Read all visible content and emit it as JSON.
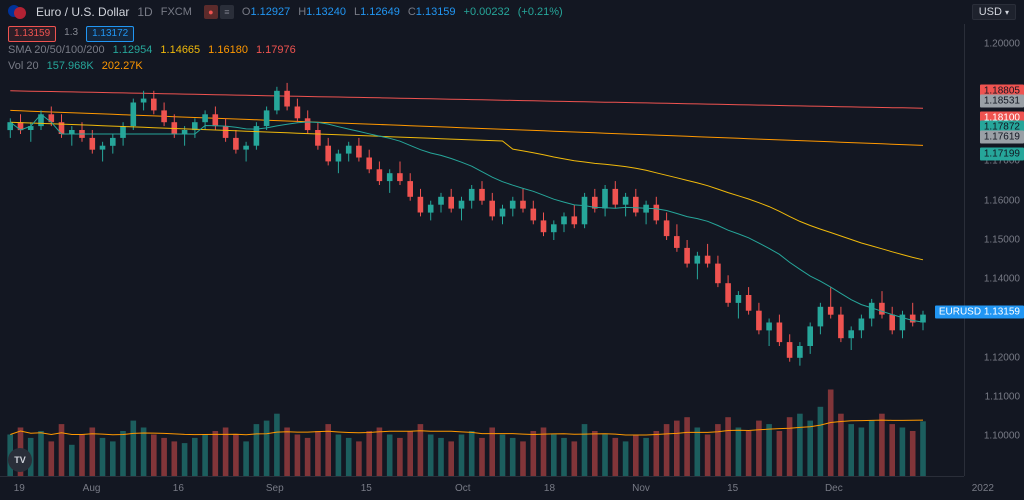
{
  "header": {
    "symbol_name": "Euro / U.S. Dollar",
    "timeframe": "1D",
    "exchange": "FXCM",
    "currency": "USD",
    "ohlc": {
      "o_label": "O",
      "o": "1.12927",
      "h_label": "H",
      "h": "1.13240",
      "l_label": "L",
      "l": "1.12649",
      "c_label": "C",
      "c": "1.13159",
      "change": "+0.00232",
      "change_pct": "(+0.21%)"
    }
  },
  "pills": {
    "bid": "1.13159",
    "mid": "1.3",
    "ask": "1.13172"
  },
  "sma": {
    "label": "SMA 20/50/100/200",
    "v20": "1.12954",
    "v50": "1.14665",
    "v100": "1.16180",
    "v200": "1.17976"
  },
  "volume": {
    "label": "Vol 20",
    "v1": "157.968K",
    "v2": "202.27K"
  },
  "price_labels": [
    {
      "text": "1.18805",
      "bg": "#ef5350",
      "fg": "#131722",
      "price": 1.18805
    },
    {
      "text": "1.18531",
      "bg": "#9aa0a6",
      "fg": "#131722",
      "price": 1.18531
    },
    {
      "text": "1.18100",
      "bg": "#ef5350",
      "fg": "#ffffff",
      "price": 1.181
    },
    {
      "text": "1.17872",
      "bg": "#26a69a",
      "fg": "#131722",
      "price": 1.17872
    },
    {
      "text": "1.17619",
      "bg": "#9aa0a6",
      "fg": "#131722",
      "price": 1.17619
    },
    {
      "text": "1.17199",
      "bg": "#26a69a",
      "fg": "#131722",
      "price": 1.17199
    },
    {
      "text": "EURUSD  1.13159",
      "bg": "#2196f3",
      "fg": "#ffffff",
      "price": 1.13159
    }
  ],
  "chart": {
    "type": "candlestick",
    "ylim": [
      1.095,
      1.205
    ],
    "yticks": [
      1.1,
      1.11,
      1.12,
      1.14,
      1.15,
      1.16,
      1.17,
      1.2
    ],
    "ytick_labels": [
      "1.10000",
      "1.11000",
      "1.12000",
      "1.14000",
      "1.15000",
      "1.16000",
      "1.17000",
      "1.20000"
    ],
    "xticks": [
      {
        "pos": 0.02,
        "label": "19"
      },
      {
        "pos": 0.095,
        "label": "Aug"
      },
      {
        "pos": 0.185,
        "label": "16"
      },
      {
        "pos": 0.285,
        "label": "Sep"
      },
      {
        "pos": 0.38,
        "label": "15"
      },
      {
        "pos": 0.48,
        "label": "Oct"
      },
      {
        "pos": 0.57,
        "label": "18"
      },
      {
        "pos": 0.665,
        "label": "Nov"
      },
      {
        "pos": 0.76,
        "label": "15"
      },
      {
        "pos": 0.865,
        "label": "Dec"
      }
    ],
    "year_label": "2022",
    "colors": {
      "up": "#26a69a",
      "down": "#ef5350",
      "bg": "#131722",
      "sma20": "#26a69a",
      "sma50": "#f0b90b",
      "sma100": "#ff9800",
      "sma200": "#ef5350",
      "grid": "#2a2e39"
    },
    "vol_max": 260,
    "candles": [
      {
        "o": 1.178,
        "h": 1.181,
        "l": 1.176,
        "c": 1.18,
        "v": 120,
        "d": 1
      },
      {
        "o": 1.18,
        "h": 1.182,
        "l": 1.177,
        "c": 1.178,
        "v": 140,
        "d": 0
      },
      {
        "o": 1.178,
        "h": 1.18,
        "l": 1.175,
        "c": 1.179,
        "v": 110,
        "d": 1
      },
      {
        "o": 1.179,
        "h": 1.183,
        "l": 1.178,
        "c": 1.182,
        "v": 130,
        "d": 1
      },
      {
        "o": 1.182,
        "h": 1.184,
        "l": 1.179,
        "c": 1.18,
        "v": 100,
        "d": 0
      },
      {
        "o": 1.18,
        "h": 1.182,
        "l": 1.176,
        "c": 1.177,
        "v": 150,
        "d": 0
      },
      {
        "o": 1.177,
        "h": 1.179,
        "l": 1.174,
        "c": 1.178,
        "v": 90,
        "d": 1
      },
      {
        "o": 1.178,
        "h": 1.18,
        "l": 1.175,
        "c": 1.176,
        "v": 120,
        "d": 0
      },
      {
        "o": 1.176,
        "h": 1.178,
        "l": 1.172,
        "c": 1.173,
        "v": 140,
        "d": 0
      },
      {
        "o": 1.173,
        "h": 1.175,
        "l": 1.17,
        "c": 1.174,
        "v": 110,
        "d": 1
      },
      {
        "o": 1.174,
        "h": 1.177,
        "l": 1.172,
        "c": 1.176,
        "v": 100,
        "d": 1
      },
      {
        "o": 1.176,
        "h": 1.18,
        "l": 1.174,
        "c": 1.179,
        "v": 130,
        "d": 1
      },
      {
        "o": 1.179,
        "h": 1.186,
        "l": 1.178,
        "c": 1.185,
        "v": 160,
        "d": 1
      },
      {
        "o": 1.185,
        "h": 1.188,
        "l": 1.183,
        "c": 1.186,
        "v": 140,
        "d": 1
      },
      {
        "o": 1.186,
        "h": 1.188,
        "l": 1.182,
        "c": 1.183,
        "v": 120,
        "d": 0
      },
      {
        "o": 1.183,
        "h": 1.185,
        "l": 1.179,
        "c": 1.18,
        "v": 110,
        "d": 0
      },
      {
        "o": 1.18,
        "h": 1.182,
        "l": 1.176,
        "c": 1.177,
        "v": 100,
        "d": 0
      },
      {
        "o": 1.177,
        "h": 1.179,
        "l": 1.174,
        "c": 1.178,
        "v": 95,
        "d": 1
      },
      {
        "o": 1.178,
        "h": 1.181,
        "l": 1.176,
        "c": 1.18,
        "v": 110,
        "d": 1
      },
      {
        "o": 1.18,
        "h": 1.183,
        "l": 1.178,
        "c": 1.182,
        "v": 120,
        "d": 1
      },
      {
        "o": 1.182,
        "h": 1.184,
        "l": 1.178,
        "c": 1.179,
        "v": 130,
        "d": 0
      },
      {
        "o": 1.179,
        "h": 1.181,
        "l": 1.175,
        "c": 1.176,
        "v": 140,
        "d": 0
      },
      {
        "o": 1.176,
        "h": 1.178,
        "l": 1.172,
        "c": 1.173,
        "v": 120,
        "d": 0
      },
      {
        "o": 1.173,
        "h": 1.175,
        "l": 1.17,
        "c": 1.174,
        "v": 100,
        "d": 1
      },
      {
        "o": 1.174,
        "h": 1.18,
        "l": 1.173,
        "c": 1.179,
        "v": 150,
        "d": 1
      },
      {
        "o": 1.179,
        "h": 1.184,
        "l": 1.178,
        "c": 1.183,
        "v": 160,
        "d": 1
      },
      {
        "o": 1.183,
        "h": 1.189,
        "l": 1.182,
        "c": 1.188,
        "v": 180,
        "d": 1
      },
      {
        "o": 1.188,
        "h": 1.19,
        "l": 1.183,
        "c": 1.184,
        "v": 140,
        "d": 0
      },
      {
        "o": 1.184,
        "h": 1.186,
        "l": 1.18,
        "c": 1.181,
        "v": 120,
        "d": 0
      },
      {
        "o": 1.181,
        "h": 1.183,
        "l": 1.177,
        "c": 1.178,
        "v": 110,
        "d": 0
      },
      {
        "o": 1.178,
        "h": 1.18,
        "l": 1.173,
        "c": 1.174,
        "v": 130,
        "d": 0
      },
      {
        "o": 1.174,
        "h": 1.176,
        "l": 1.169,
        "c": 1.17,
        "v": 150,
        "d": 0
      },
      {
        "o": 1.17,
        "h": 1.173,
        "l": 1.167,
        "c": 1.172,
        "v": 120,
        "d": 1
      },
      {
        "o": 1.172,
        "h": 1.175,
        "l": 1.17,
        "c": 1.174,
        "v": 110,
        "d": 1
      },
      {
        "o": 1.174,
        "h": 1.176,
        "l": 1.17,
        "c": 1.171,
        "v": 100,
        "d": 0
      },
      {
        "o": 1.171,
        "h": 1.173,
        "l": 1.167,
        "c": 1.168,
        "v": 130,
        "d": 0
      },
      {
        "o": 1.168,
        "h": 1.17,
        "l": 1.164,
        "c": 1.165,
        "v": 140,
        "d": 0
      },
      {
        "o": 1.165,
        "h": 1.168,
        "l": 1.162,
        "c": 1.167,
        "v": 120,
        "d": 1
      },
      {
        "o": 1.167,
        "h": 1.17,
        "l": 1.164,
        "c": 1.165,
        "v": 110,
        "d": 0
      },
      {
        "o": 1.165,
        "h": 1.167,
        "l": 1.16,
        "c": 1.161,
        "v": 130,
        "d": 0
      },
      {
        "o": 1.161,
        "h": 1.163,
        "l": 1.156,
        "c": 1.157,
        "v": 150,
        "d": 0
      },
      {
        "o": 1.157,
        "h": 1.16,
        "l": 1.155,
        "c": 1.159,
        "v": 120,
        "d": 1
      },
      {
        "o": 1.159,
        "h": 1.162,
        "l": 1.157,
        "c": 1.161,
        "v": 110,
        "d": 1
      },
      {
        "o": 1.161,
        "h": 1.163,
        "l": 1.157,
        "c": 1.158,
        "v": 100,
        "d": 0
      },
      {
        "o": 1.158,
        "h": 1.161,
        "l": 1.155,
        "c": 1.16,
        "v": 120,
        "d": 1
      },
      {
        "o": 1.16,
        "h": 1.164,
        "l": 1.158,
        "c": 1.163,
        "v": 130,
        "d": 1
      },
      {
        "o": 1.163,
        "h": 1.165,
        "l": 1.159,
        "c": 1.16,
        "v": 110,
        "d": 0
      },
      {
        "o": 1.16,
        "h": 1.162,
        "l": 1.155,
        "c": 1.156,
        "v": 140,
        "d": 0
      },
      {
        "o": 1.156,
        "h": 1.159,
        "l": 1.154,
        "c": 1.158,
        "v": 120,
        "d": 1
      },
      {
        "o": 1.158,
        "h": 1.161,
        "l": 1.156,
        "c": 1.16,
        "v": 110,
        "d": 1
      },
      {
        "o": 1.16,
        "h": 1.163,
        "l": 1.157,
        "c": 1.158,
        "v": 100,
        "d": 0
      },
      {
        "o": 1.158,
        "h": 1.16,
        "l": 1.154,
        "c": 1.155,
        "v": 130,
        "d": 0
      },
      {
        "o": 1.155,
        "h": 1.157,
        "l": 1.151,
        "c": 1.152,
        "v": 140,
        "d": 0
      },
      {
        "o": 1.152,
        "h": 1.155,
        "l": 1.15,
        "c": 1.154,
        "v": 120,
        "d": 1
      },
      {
        "o": 1.154,
        "h": 1.157,
        "l": 1.152,
        "c": 1.156,
        "v": 110,
        "d": 1
      },
      {
        "o": 1.156,
        "h": 1.159,
        "l": 1.153,
        "c": 1.154,
        "v": 100,
        "d": 0
      },
      {
        "o": 1.154,
        "h": 1.162,
        "l": 1.153,
        "c": 1.161,
        "v": 150,
        "d": 1
      },
      {
        "o": 1.161,
        "h": 1.163,
        "l": 1.157,
        "c": 1.158,
        "v": 130,
        "d": 0
      },
      {
        "o": 1.158,
        "h": 1.164,
        "l": 1.156,
        "c": 1.163,
        "v": 120,
        "d": 1
      },
      {
        "o": 1.163,
        "h": 1.165,
        "l": 1.158,
        "c": 1.159,
        "v": 110,
        "d": 0
      },
      {
        "o": 1.159,
        "h": 1.162,
        "l": 1.156,
        "c": 1.161,
        "v": 100,
        "d": 1
      },
      {
        "o": 1.161,
        "h": 1.163,
        "l": 1.156,
        "c": 1.157,
        "v": 120,
        "d": 0
      },
      {
        "o": 1.157,
        "h": 1.16,
        "l": 1.154,
        "c": 1.159,
        "v": 110,
        "d": 1
      },
      {
        "o": 1.159,
        "h": 1.161,
        "l": 1.154,
        "c": 1.155,
        "v": 130,
        "d": 0
      },
      {
        "o": 1.155,
        "h": 1.157,
        "l": 1.15,
        "c": 1.151,
        "v": 150,
        "d": 0
      },
      {
        "o": 1.151,
        "h": 1.154,
        "l": 1.147,
        "c": 1.148,
        "v": 160,
        "d": 0
      },
      {
        "o": 1.148,
        "h": 1.15,
        "l": 1.143,
        "c": 1.144,
        "v": 170,
        "d": 0
      },
      {
        "o": 1.144,
        "h": 1.147,
        "l": 1.14,
        "c": 1.146,
        "v": 140,
        "d": 1
      },
      {
        "o": 1.146,
        "h": 1.149,
        "l": 1.143,
        "c": 1.144,
        "v": 120,
        "d": 0
      },
      {
        "o": 1.144,
        "h": 1.146,
        "l": 1.138,
        "c": 1.139,
        "v": 150,
        "d": 0
      },
      {
        "o": 1.139,
        "h": 1.141,
        "l": 1.133,
        "c": 1.134,
        "v": 170,
        "d": 0
      },
      {
        "o": 1.134,
        "h": 1.137,
        "l": 1.13,
        "c": 1.136,
        "v": 140,
        "d": 1
      },
      {
        "o": 1.136,
        "h": 1.138,
        "l": 1.131,
        "c": 1.132,
        "v": 130,
        "d": 0
      },
      {
        "o": 1.132,
        "h": 1.134,
        "l": 1.126,
        "c": 1.127,
        "v": 160,
        "d": 0
      },
      {
        "o": 1.127,
        "h": 1.13,
        "l": 1.123,
        "c": 1.129,
        "v": 150,
        "d": 1
      },
      {
        "o": 1.129,
        "h": 1.131,
        "l": 1.123,
        "c": 1.124,
        "v": 130,
        "d": 0
      },
      {
        "o": 1.124,
        "h": 1.126,
        "l": 1.119,
        "c": 1.12,
        "v": 170,
        "d": 0
      },
      {
        "o": 1.12,
        "h": 1.124,
        "l": 1.118,
        "c": 1.123,
        "v": 180,
        "d": 1
      },
      {
        "o": 1.123,
        "h": 1.129,
        "l": 1.121,
        "c": 1.128,
        "v": 160,
        "d": 1
      },
      {
        "o": 1.128,
        "h": 1.134,
        "l": 1.126,
        "c": 1.133,
        "v": 200,
        "d": 1
      },
      {
        "o": 1.133,
        "h": 1.138,
        "l": 1.13,
        "c": 1.131,
        "v": 250,
        "d": 0
      },
      {
        "o": 1.131,
        "h": 1.133,
        "l": 1.124,
        "c": 1.125,
        "v": 180,
        "d": 0
      },
      {
        "o": 1.125,
        "h": 1.128,
        "l": 1.122,
        "c": 1.127,
        "v": 150,
        "d": 1
      },
      {
        "o": 1.127,
        "h": 1.131,
        "l": 1.125,
        "c": 1.13,
        "v": 140,
        "d": 1
      },
      {
        "o": 1.13,
        "h": 1.135,
        "l": 1.128,
        "c": 1.134,
        "v": 160,
        "d": 1
      },
      {
        "o": 1.134,
        "h": 1.137,
        "l": 1.13,
        "c": 1.131,
        "v": 180,
        "d": 0
      },
      {
        "o": 1.131,
        "h": 1.133,
        "l": 1.126,
        "c": 1.127,
        "v": 150,
        "d": 0
      },
      {
        "o": 1.127,
        "h": 1.132,
        "l": 1.125,
        "c": 1.131,
        "v": 140,
        "d": 1
      },
      {
        "o": 1.131,
        "h": 1.134,
        "l": 1.128,
        "c": 1.129,
        "v": 130,
        "d": 0
      },
      {
        "o": 1.129,
        "h": 1.132,
        "l": 1.127,
        "c": 1.131,
        "v": 158,
        "d": 1
      }
    ]
  },
  "logo": "TV"
}
